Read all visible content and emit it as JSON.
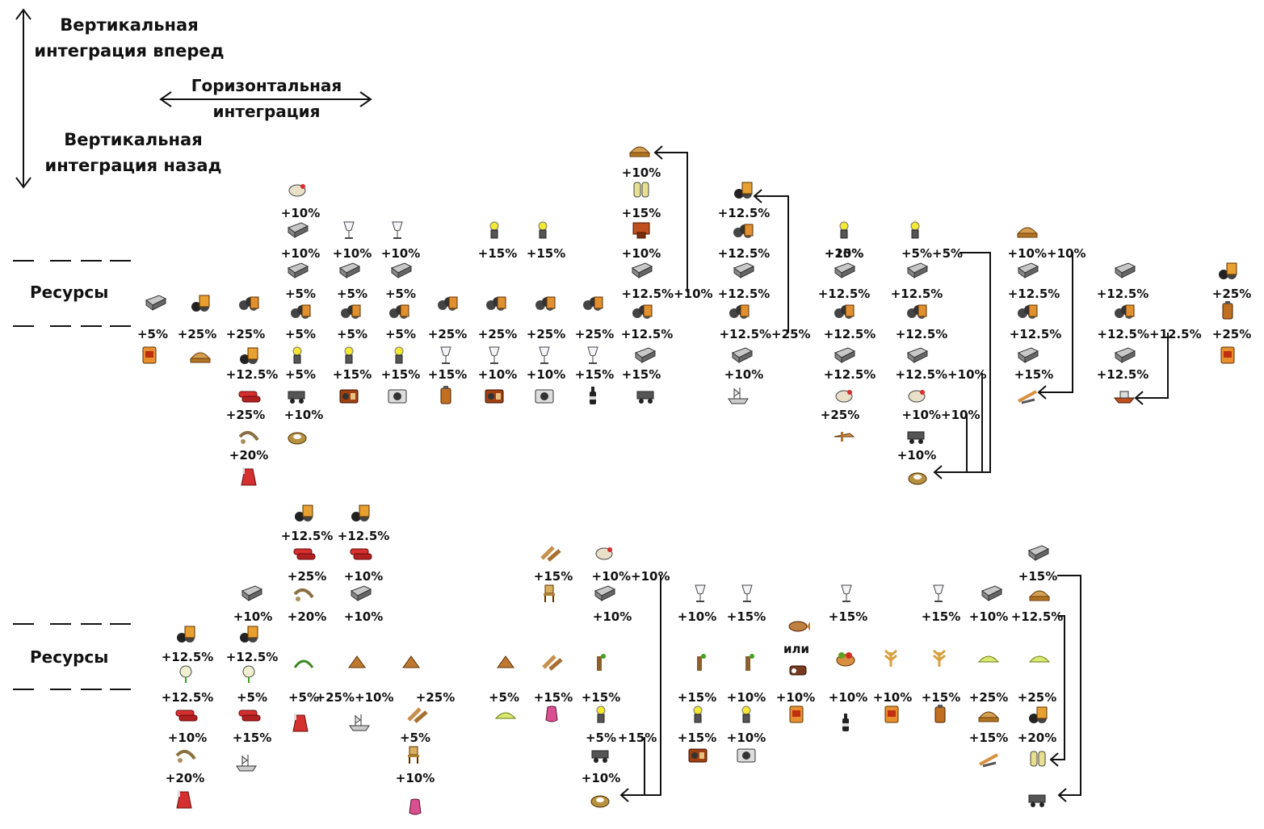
{
  "legend": {
    "forward_line1": "Вертикальная",
    "forward_line2": "интеграция вперед",
    "horizontal_line1": "Горизонтальная",
    "horizontal_line2": "интеграция",
    "backward_line1": "Вертикальная",
    "backward_line2": "интеграция назад"
  },
  "sections": [
    {
      "label": "Ресурсы"
    },
    {
      "label": "Ресурсы"
    }
  ],
  "or_label": "или",
  "percent_labels": [
    "+10%",
    "+10%",
    "+10%",
    "+10%",
    "+15%",
    "+15%",
    "+10%",
    "+15%",
    "+10%",
    "+12.5%",
    "+12.5%",
    "+10%",
    "+25%",
    "+5%+5%",
    "+10%+10%",
    "+5%",
    "+5%",
    "+5%",
    "+12.5%+10%",
    "+12.5%",
    "+12.5%",
    "+12.5%",
    "+12.5%",
    "+12.5%",
    "+25%",
    "+5%",
    "+25%",
    "+25%",
    "+5%",
    "+5%",
    "+5%",
    "+25%",
    "+25%",
    "+25%",
    "+25%",
    "+12.5%",
    "+12.5%+25%",
    "+12.5%",
    "+12.5%",
    "+12.5%",
    "+12.5%+12.5%",
    "+25%",
    "+12.5%",
    "+5%",
    "+15%",
    "+15%",
    "+15%",
    "+10%",
    "+10%",
    "+15%",
    "+15%",
    "+10%",
    "+12.5%",
    "+12.5%+10%",
    "+15%",
    "+12.5%",
    "+25%",
    "+10%",
    "+25%",
    "+10%+10%",
    "+20%",
    "+10%",
    "+12.5%",
    "+12.5%",
    "+15%",
    "+10%+10%",
    "+15%",
    "+25%",
    "+10%",
    "+10%",
    "+20%",
    "+10%",
    "+10%",
    "+10%",
    "+15%",
    "+15%",
    "+15%",
    "+10%",
    "+12.5%",
    "+12.5%",
    "+12.5%",
    "+12.5%",
    "+5%",
    "+5%",
    "+25%+10%",
    "+25%",
    "+5%",
    "+15%",
    "+15%",
    "+15%",
    "+10%",
    "+10%",
    "+10%",
    "+10%",
    "+15%",
    "+25%",
    "+25%",
    "+10%",
    "+15%",
    "+5%",
    "+5%",
    "+15%",
    "+15%",
    "+10%",
    "+15%",
    "+20%",
    "+20%",
    "+10%",
    "+10%"
  ],
  "icons": [
    "chicken-icon",
    "ingot-icon",
    "bun-icon",
    "barrel-icon",
    "glass-icon",
    "lamp-icon",
    "pipes-icon",
    "ingot-icon",
    "bales-icon",
    "ore-icon",
    "fabric-icon",
    "cigar-icon",
    "canister-icon",
    "potion-icon",
    "radio-icon",
    "camera-icon",
    "bottle-icon",
    "cart-icon",
    "ship-icon",
    "drill-icon",
    "grain-icon",
    "timber-icon",
    "log-icon",
    "chair-icon",
    "plant-icon",
    "crate-icon",
    "fish-icon",
    "cow-icon",
    "basket-icon",
    "sprout-icon",
    "flower-icon",
    "leaves-icon",
    "plane-icon",
    "shield-icon",
    "spring-icon",
    "pump-icon",
    "corn-icon",
    "flour-icon",
    "boat-icon",
    "dress-icon",
    "orchid-icon",
    "tools-icon"
  ]
}
